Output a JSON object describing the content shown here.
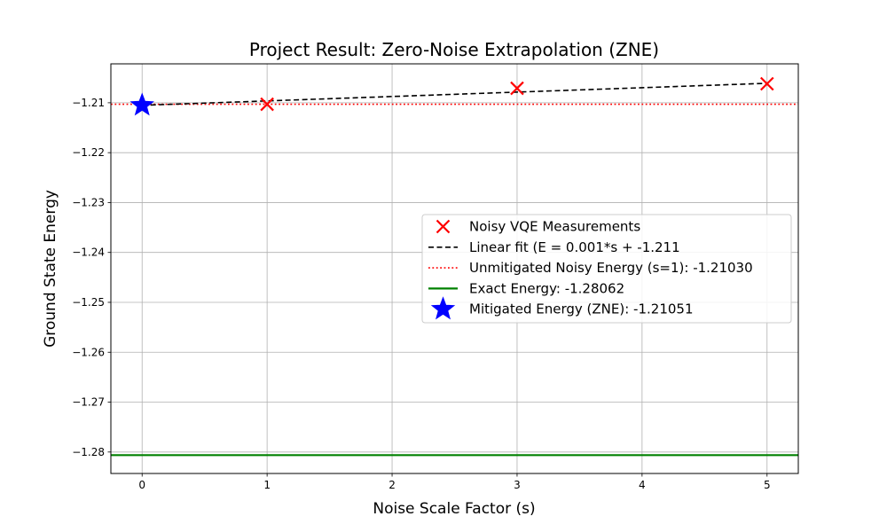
{
  "chart_data": {
    "type": "line",
    "title": "Project Result: Zero-Noise Extrapolation (ZNE)",
    "xlabel": "Noise Scale Factor (s)",
    "ylabel": "Ground State Energy",
    "xlim": [
      -0.25,
      5.25
    ],
    "ylim": [
      -1.2843,
      -1.2022
    ],
    "xticks": [
      0,
      1,
      2,
      3,
      4,
      5
    ],
    "xtick_labels": [
      "0",
      "1",
      "2",
      "3",
      "4",
      "5"
    ],
    "yticks": [
      -1.21,
      -1.22,
      -1.23,
      -1.24,
      -1.25,
      -1.26,
      -1.27,
      -1.28
    ],
    "ytick_labels": [
      "−1.21",
      "−1.22",
      "−1.23",
      "−1.24",
      "−1.25",
      "−1.26",
      "−1.27",
      "−1.28"
    ],
    "grid": true,
    "legend_position": "center-right",
    "series": [
      {
        "name": "Noisy VQE Measurements",
        "kind": "scatter",
        "marker": "x",
        "color": "#ff0000",
        "x": [
          1,
          3,
          5
        ],
        "y": [
          -1.2103,
          -1.2071,
          -1.2062
        ]
      },
      {
        "name": "Linear fit (E = 0.001*s + -1.211",
        "kind": "line",
        "style": "dashed",
        "color": "#000000",
        "x": [
          0,
          5
        ],
        "y": [
          -1.21051,
          -1.2061
        ]
      },
      {
        "name": "Unmitigated Noisy Energy (s=1): -1.21030",
        "kind": "hline",
        "style": "dotted",
        "color": "#ff0000",
        "y": -1.2103
      },
      {
        "name": "Exact Energy: -1.28062",
        "kind": "hline",
        "style": "solid",
        "color": "#008000",
        "y": -1.28062
      },
      {
        "name": "Mitigated Energy (ZNE): -1.21051",
        "kind": "scatter",
        "marker": "star",
        "color": "#0000ff",
        "x": [
          0
        ],
        "y": [
          -1.21051
        ]
      }
    ]
  }
}
